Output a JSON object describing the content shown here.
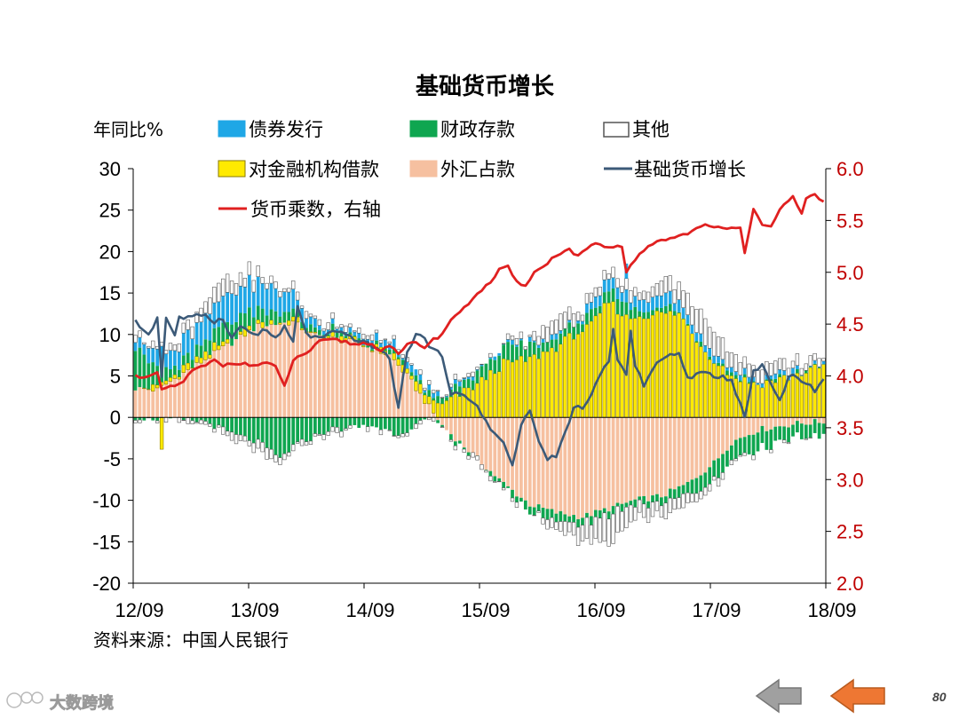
{
  "chart_data": {
    "type": "bar",
    "title": "基础货币增长",
    "ylabel": "年同比%",
    "y2label": "",
    "ylim": [
      -20,
      30
    ],
    "y2lim": [
      2.0,
      6.0
    ],
    "y_ticks": [
      "30",
      "25",
      "20",
      "15",
      "10",
      "5",
      "0",
      "-5",
      "-10",
      "-15",
      "-20"
    ],
    "y2_ticks": [
      "6.0",
      "5.5",
      "5.0",
      "4.5",
      "4.0",
      "3.5",
      "3.0",
      "2.5",
      "2.0"
    ],
    "x_ticks": [
      "12/09",
      "13/09",
      "14/09",
      "15/09",
      "16/09",
      "17/09",
      "18/09"
    ],
    "grid": false,
    "legend_position": "top",
    "stacked": true,
    "series": [
      {
        "name": "债券发行",
        "kind": "bar",
        "color": "#1fa7e6"
      },
      {
        "name": "财政存款",
        "kind": "bar",
        "color": "#0fa650"
      },
      {
        "name": "其他",
        "kind": "bar",
        "color": "#ffffff"
      },
      {
        "name": "对金融机构借款",
        "kind": "bar",
        "color": "#ffea00"
      },
      {
        "name": "外汇占款",
        "kind": "bar",
        "color": "#f6c0a0"
      },
      {
        "name": "基础货币增长",
        "kind": "line",
        "axis": "left",
        "color": "#3c5a78"
      },
      {
        "name": "货币乘数，右轴",
        "kind": "line",
        "axis": "right",
        "color": "#e02020"
      }
    ],
    "base_growth_anchors": [
      [
        0,
        11.5
      ],
      [
        3,
        10
      ],
      [
        5,
        12
      ],
      [
        6,
        5
      ],
      [
        7,
        12
      ],
      [
        9,
        10
      ],
      [
        10,
        12
      ],
      [
        13,
        12
      ],
      [
        16,
        12.5
      ],
      [
        18,
        11.5
      ],
      [
        20,
        12
      ],
      [
        22,
        9.5
      ],
      [
        24,
        11
      ],
      [
        27,
        10
      ],
      [
        30,
        10.5
      ],
      [
        32,
        9.5
      ],
      [
        34,
        10.8
      ],
      [
        36,
        9
      ],
      [
        37,
        13.5
      ],
      [
        39,
        10
      ],
      [
        42,
        9.5
      ],
      [
        45,
        10.2
      ],
      [
        48,
        10
      ],
      [
        50,
        9.5
      ],
      [
        53,
        8.8
      ],
      [
        55,
        8.5
      ],
      [
        58,
        7
      ],
      [
        60,
        1
      ],
      [
        62,
        8
      ],
      [
        64,
        10
      ],
      [
        66,
        9.5
      ],
      [
        68,
        8
      ],
      [
        70,
        7.5
      ],
      [
        72,
        3
      ],
      [
        75,
        2.5
      ],
      [
        78,
        1.5
      ],
      [
        81,
        -1.5
      ],
      [
        84,
        -3
      ],
      [
        86,
        -6
      ],
      [
        88,
        -1
      ],
      [
        90,
        1
      ],
      [
        92,
        -3
      ],
      [
        94,
        -5
      ],
      [
        96,
        -4.5
      ],
      [
        98,
        -2
      ],
      [
        100,
        1
      ],
      [
        103,
        1.5
      ],
      [
        106,
        5
      ],
      [
        108,
        7
      ],
      [
        109,
        10.5
      ],
      [
        110,
        7
      ],
      [
        112,
        5
      ],
      [
        113,
        10.5
      ],
      [
        114,
        6
      ],
      [
        116,
        4
      ],
      [
        118,
        6
      ],
      [
        120,
        7
      ],
      [
        122,
        7.5
      ],
      [
        124,
        7.5
      ],
      [
        126,
        5
      ],
      [
        128,
        5
      ],
      [
        130,
        5.5
      ],
      [
        132,
        5
      ],
      [
        134,
        5
      ],
      [
        136,
        4.5
      ],
      [
        139,
        0
      ],
      [
        141,
        5.5
      ],
      [
        143,
        6.5
      ],
      [
        145,
        4
      ],
      [
        147,
        2
      ],
      [
        149,
        5
      ],
      [
        151,
        5
      ],
      [
        153,
        4
      ],
      [
        155,
        3.3
      ],
      [
        157,
        4.5
      ]
    ],
    "multiplier_anchors": [
      [
        0,
        4.0
      ],
      [
        3,
        3.99
      ],
      [
        5,
        4.02
      ],
      [
        6,
        3.87
      ],
      [
        7,
        3.88
      ],
      [
        9,
        3.9
      ],
      [
        11,
        3.95
      ],
      [
        13,
        4.05
      ],
      [
        16,
        4.1
      ],
      [
        18,
        4.15
      ],
      [
        20,
        4.1
      ],
      [
        22,
        4.13
      ],
      [
        24,
        4.12
      ],
      [
        27,
        4.1
      ],
      [
        30,
        4.13
      ],
      [
        32,
        4.08
      ],
      [
        34,
        3.9
      ],
      [
        36,
        4.15
      ],
      [
        38,
        4.2
      ],
      [
        40,
        4.25
      ],
      [
        42,
        4.33
      ],
      [
        45,
        4.35
      ],
      [
        48,
        4.33
      ],
      [
        50,
        4.3
      ],
      [
        52,
        4.32
      ],
      [
        54,
        4.3
      ],
      [
        56,
        4.25
      ],
      [
        58,
        4.3
      ],
      [
        60,
        4.2
      ],
      [
        62,
        4.3
      ],
      [
        64,
        4.32
      ],
      [
        66,
        4.28
      ],
      [
        68,
        4.35
      ],
      [
        70,
        4.4
      ],
      [
        72,
        4.55
      ],
      [
        75,
        4.65
      ],
      [
        78,
        4.8
      ],
      [
        81,
        4.9
      ],
      [
        83,
        5.02
      ],
      [
        85,
        5.05
      ],
      [
        87,
        4.9
      ],
      [
        89,
        4.88
      ],
      [
        91,
        5.0
      ],
      [
        93,
        5.05
      ],
      [
        95,
        5.13
      ],
      [
        97,
        5.19
      ],
      [
        99,
        5.22
      ],
      [
        101,
        5.15
      ],
      [
        103,
        5.23
      ],
      [
        105,
        5.28
      ],
      [
        107,
        5.23
      ],
      [
        109,
        5.24
      ],
      [
        111,
        5.25
      ],
      [
        112,
        5.0
      ],
      [
        114,
        5.13
      ],
      [
        116,
        5.2
      ],
      [
        118,
        5.28
      ],
      [
        120,
        5.31
      ],
      [
        122,
        5.33
      ],
      [
        124,
        5.35
      ],
      [
        126,
        5.38
      ],
      [
        128,
        5.42
      ],
      [
        130,
        5.45
      ],
      [
        132,
        5.43
      ],
      [
        134,
        5.44
      ],
      [
        136,
        5.43
      ],
      [
        138,
        5.44
      ],
      [
        139,
        5.2
      ],
      [
        141,
        5.6
      ],
      [
        143,
        5.45
      ],
      [
        145,
        5.43
      ],
      [
        147,
        5.6
      ],
      [
        149,
        5.7
      ],
      [
        150,
        5.73
      ],
      [
        152,
        5.58
      ],
      [
        153,
        5.7
      ],
      [
        155,
        5.75
      ],
      [
        157,
        5.68
      ]
    ],
    "bar_anchors": {
      "fx": [
        [
          0,
          3.5
        ],
        [
          5,
          3.3
        ],
        [
          7,
          4
        ],
        [
          10,
          5
        ],
        [
          16,
          7
        ],
        [
          22,
          9
        ],
        [
          28,
          11
        ],
        [
          36,
          11.5
        ],
        [
          40,
          10
        ],
        [
          50,
          9
        ],
        [
          58,
          7.5
        ],
        [
          62,
          5
        ],
        [
          70,
          -1
        ],
        [
          78,
          -5
        ],
        [
          84,
          -8
        ],
        [
          90,
          -10.5
        ],
        [
          96,
          -11.5
        ],
        [
          102,
          -12
        ],
        [
          108,
          -11
        ],
        [
          114,
          -10
        ],
        [
          120,
          -9.5
        ],
        [
          126,
          -8
        ],
        [
          132,
          -5.5
        ],
        [
          136,
          -3
        ],
        [
          142,
          -1.5
        ],
        [
          150,
          -0.8
        ],
        [
          157,
          -0.5
        ]
      ],
      "loan": [
        [
          0,
          0.2
        ],
        [
          10,
          0.4
        ],
        [
          20,
          0.5
        ],
        [
          40,
          0.2
        ],
        [
          60,
          0.3
        ],
        [
          70,
          1.5
        ],
        [
          78,
          4
        ],
        [
          84,
          6.5
        ],
        [
          90,
          7
        ],
        [
          96,
          8.5
        ],
        [
          100,
          10
        ],
        [
          104,
          11
        ],
        [
          108,
          14
        ],
        [
          112,
          12
        ],
        [
          118,
          12.5
        ],
        [
          124,
          12.5
        ],
        [
          130,
          8
        ],
        [
          136,
          5
        ],
        [
          142,
          4
        ],
        [
          150,
          5
        ],
        [
          157,
          6.2
        ]
      ],
      "bond": [
        [
          0,
          1.2
        ],
        [
          8,
          2
        ],
        [
          14,
          3
        ],
        [
          20,
          3.5
        ],
        [
          26,
          3.5
        ],
        [
          34,
          2.5
        ],
        [
          40,
          1
        ],
        [
          48,
          0.5
        ],
        [
          56,
          0.8
        ],
        [
          62,
          0.5
        ],
        [
          70,
          0.3
        ],
        [
          80,
          0.2
        ],
        [
          100,
          0.3
        ],
        [
          108,
          1.6
        ],
        [
          112,
          1.2
        ],
        [
          120,
          1.6
        ],
        [
          128,
          0.8
        ],
        [
          136,
          0.4
        ],
        [
          157,
          0.2
        ]
      ],
      "fiscal": [
        [
          0,
          5
        ],
        [
          6,
          2
        ],
        [
          10,
          0.8
        ],
        [
          14,
          1.5
        ],
        [
          22,
          2.2
        ],
        [
          30,
          1.5
        ],
        [
          36,
          0.8
        ],
        [
          44,
          0.5
        ],
        [
          60,
          0.3
        ],
        [
          70,
          0.6
        ],
        [
          78,
          1.5
        ],
        [
          84,
          2
        ],
        [
          90,
          1.5
        ],
        [
          100,
          1.2
        ],
        [
          106,
          1.2
        ],
        [
          110,
          1.5
        ],
        [
          116,
          0.8
        ],
        [
          126,
          0.3
        ],
        [
          157,
          0.1
        ]
      ],
      "fiscal_neg": [
        [
          0,
          0
        ],
        [
          16,
          -0.5
        ],
        [
          22,
          -2
        ],
        [
          28,
          -3
        ],
        [
          33,
          -5
        ],
        [
          36,
          -3.5
        ],
        [
          44,
          -1.5
        ],
        [
          54,
          -1
        ],
        [
          60,
          -2
        ],
        [
          66,
          -0.4
        ],
        [
          76,
          -0.2
        ],
        [
          84,
          -0.5
        ],
        [
          92,
          -1
        ],
        [
          100,
          -1
        ],
        [
          110,
          -0.6
        ],
        [
          120,
          -0.7
        ],
        [
          126,
          -1.5
        ],
        [
          132,
          -2
        ],
        [
          136,
          -2
        ],
        [
          142,
          -2.2
        ],
        [
          150,
          -1.8
        ],
        [
          157,
          -1.5
        ]
      ],
      "other": [
        [
          0,
          0.5
        ],
        [
          10,
          0.8
        ],
        [
          20,
          2
        ],
        [
          30,
          0.8
        ],
        [
          40,
          0.5
        ],
        [
          60,
          0.3
        ],
        [
          80,
          0.3
        ],
        [
          90,
          0.5
        ],
        [
          96,
          2
        ],
        [
          104,
          0.8
        ],
        [
          120,
          1.5
        ],
        [
          130,
          3
        ],
        [
          140,
          1.5
        ],
        [
          150,
          1.2
        ],
        [
          157,
          0.6
        ]
      ],
      "other_neg": [
        [
          0,
          0
        ],
        [
          30,
          -1
        ],
        [
          40,
          -0.3
        ],
        [
          60,
          -0.2
        ],
        [
          80,
          -0.2
        ],
        [
          90,
          -0.3
        ],
        [
          96,
          -1
        ],
        [
          102,
          -2
        ],
        [
          108,
          -3.5
        ],
        [
          112,
          -2.2
        ],
        [
          118,
          -1.5
        ],
        [
          124,
          -1.6
        ],
        [
          130,
          -0.9
        ],
        [
          136,
          -0.3
        ],
        [
          157,
          0
        ]
      ]
    },
    "bar_spikes": [
      [
        6,
        -3.8
      ],
      [
        112,
        1.8
      ]
    ],
    "n_months": 158
  },
  "source_note": "资料来源：中国人民银行",
  "page_number": "80",
  "watermark": "大数跨境",
  "nav": {
    "back_color": "#a0a0a0",
    "forward_color": "#ee7733"
  }
}
